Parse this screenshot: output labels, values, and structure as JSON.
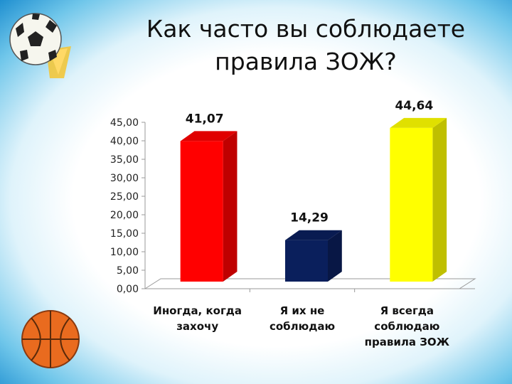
{
  "chart_data": {
    "type": "bar",
    "title": "Как часто вы соблюдаете правила ЗОЖ?",
    "title_lines": [
      "Как часто вы соблюдаете",
      "правила ЗОЖ?"
    ],
    "categories": [
      "Иногда, когда захочу",
      "Я их не соблюдаю",
      "Я всегда соблюдаю правила ЗОЖ"
    ],
    "category_lines": [
      [
        "Иногда, когда",
        "захочу"
      ],
      [
        "Я их не",
        "соблюдаю"
      ],
      [
        "Я всегда",
        "соблюдаю",
        "правила ЗОЖ"
      ]
    ],
    "values": [
      41.07,
      14.29,
      44.64
    ],
    "value_labels": [
      "41,07",
      "14,29",
      "44,64"
    ],
    "bar_colors": [
      "#ff0000",
      "#0a1f5c",
      "#ffff00"
    ],
    "ylim": [
      0,
      45
    ],
    "yticks": [
      "0,00",
      "5,00",
      "10,00",
      "15,00",
      "20,00",
      "25,00",
      "30,00",
      "35,00",
      "40,00",
      "45,00"
    ],
    "grid": false,
    "style": "3d-column"
  },
  "decor": {
    "top_icon": "soccer-ball-icon",
    "bottom_icon": "basketball-icon"
  }
}
